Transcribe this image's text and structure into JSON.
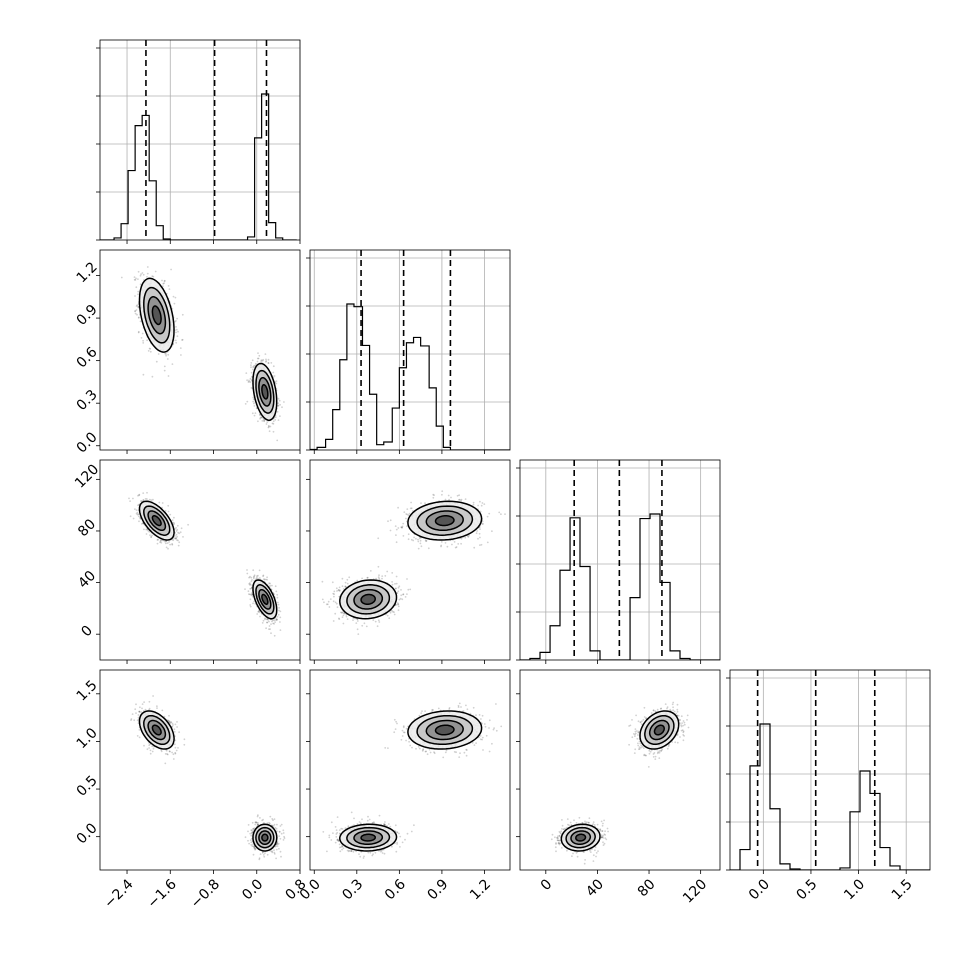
{
  "chart_data": {
    "type": "corner",
    "grid": true,
    "params": [
      {
        "range": [
          -2.9,
          0.8
        ],
        "ticks": [
          -2.4,
          -1.6,
          -0.8,
          0.0,
          0.8
        ],
        "tick_labels": [
          "−2.4",
          "−1.6",
          "−0.8",
          "0.0",
          "0.8"
        ]
      },
      {
        "range": [
          -0.03,
          1.38
        ],
        "ticks": [
          0.0,
          0.3,
          0.6,
          0.9,
          1.2
        ],
        "tick_labels": [
          "0.0",
          "0.3",
          "0.6",
          "0.9",
          "1.2"
        ]
      },
      {
        "range": [
          -20,
          135
        ],
        "ticks": [
          0,
          40,
          80,
          120
        ],
        "tick_labels": [
          "0",
          "40",
          "80",
          "120"
        ]
      },
      {
        "range": [
          -0.35,
          1.75
        ],
        "ticks": [
          0.0,
          0.5,
          1.0,
          1.5
        ],
        "tick_labels": [
          "0.0",
          "0.5",
          "1.0",
          "1.5"
        ]
      }
    ],
    "marginals": [
      {
        "edges": [
          -2.9,
          -2.77,
          -2.64,
          -2.51,
          -2.38,
          -2.25,
          -2.12,
          -1.99,
          -1.86,
          -1.73,
          -1.6,
          -1.47,
          -1.34,
          -1.21,
          -1.08,
          -0.95,
          -0.82,
          -0.69,
          -0.56,
          -0.43,
          -0.3,
          -0.17,
          -0.04,
          0.09,
          0.22,
          0.35,
          0.48,
          0.61,
          0.74
        ],
        "counts": [
          0,
          0,
          2,
          16,
          68,
          112,
          122,
          58,
          14,
          1,
          0,
          0,
          0,
          0,
          0,
          0,
          0,
          0,
          0,
          0,
          0,
          3,
          100,
          143,
          17,
          2,
          0,
          0
        ],
        "quantiles": [
          -2.05,
          -0.78,
          0.18
        ]
      },
      {
        "edges": [
          -0.03,
          0.02,
          0.08,
          0.13,
          0.18,
          0.23,
          0.28,
          0.34,
          0.39,
          0.44,
          0.49,
          0.55,
          0.6,
          0.65,
          0.7,
          0.75,
          0.81,
          0.86,
          0.91,
          0.96,
          1.02,
          1.07,
          1.12,
          1.17,
          1.22,
          1.28,
          1.33,
          1.38
        ],
        "counts": [
          1,
          5,
          20,
          76,
          170,
          275,
          270,
          197,
          105,
          10,
          15,
          79,
          155,
          202,
          212,
          196,
          117,
          45,
          5,
          0,
          0,
          0,
          0,
          0,
          0,
          0,
          0
        ],
        "quantiles": [
          0.33,
          0.63,
          0.96
        ]
      },
      {
        "edges": [
          -20,
          -12.3,
          -4.5,
          3.3,
          11,
          18.8,
          26.5,
          34.3,
          42,
          49.8,
          57.5,
          65.3,
          73,
          80.8,
          88.5,
          96.3,
          104,
          111.8,
          119.5,
          127.3,
          135
        ],
        "counts": [
          0,
          2,
          10,
          45,
          118,
          187,
          123,
          12,
          0,
          0,
          0,
          82,
          186,
          192,
          102,
          12,
          2,
          0,
          0,
          0
        ],
        "quantiles": [
          22,
          57,
          90
        ]
      },
      {
        "edges": [
          -0.35,
          -0.245,
          -0.14,
          -0.035,
          0.07,
          0.175,
          0.28,
          0.385,
          0.49,
          0.595,
          0.7,
          0.805,
          0.91,
          1.015,
          1.12,
          1.225,
          1.33,
          1.435,
          1.54,
          1.645,
          1.75
        ],
        "counts": [
          0,
          20,
          102,
          143,
          60,
          6,
          1,
          0,
          0,
          0,
          0,
          2,
          57,
          97,
          75,
          22,
          4,
          0,
          0,
          0
        ],
        "quantiles": [
          -0.06,
          0.55,
          1.17
        ]
      }
    ],
    "clusters": [
      {
        "mean": [
          -1.85,
          0.92,
          88,
          1.12
        ],
        "sd": [
          0.16,
          0.13,
          7.5,
          0.1
        ],
        "corr": [
          [
            1,
            -0.4,
            -0.6,
            -0.45
          ],
          [
            -0.4,
            1,
            0.1,
            0.1
          ],
          [
            -0.6,
            0.1,
            1,
            0.3
          ],
          [
            -0.45,
            0.1,
            0.3,
            1
          ]
        ]
      },
      {
        "mean": [
          0.15,
          0.38,
          27,
          -0.01
        ],
        "sd": [
          0.11,
          0.1,
          7.5,
          0.07
        ],
        "corr": [
          [
            1,
            -0.35,
            -0.55,
            0.0
          ],
          [
            -0.35,
            1,
            0.1,
            0.05
          ],
          [
            -0.55,
            0.1,
            1,
            0.1
          ],
          [
            0.0,
            0.05,
            0.1,
            1
          ]
        ]
      }
    ],
    "contour_levels_sigma": [
      0.5,
      1.0,
      1.5,
      2.0
    ]
  }
}
